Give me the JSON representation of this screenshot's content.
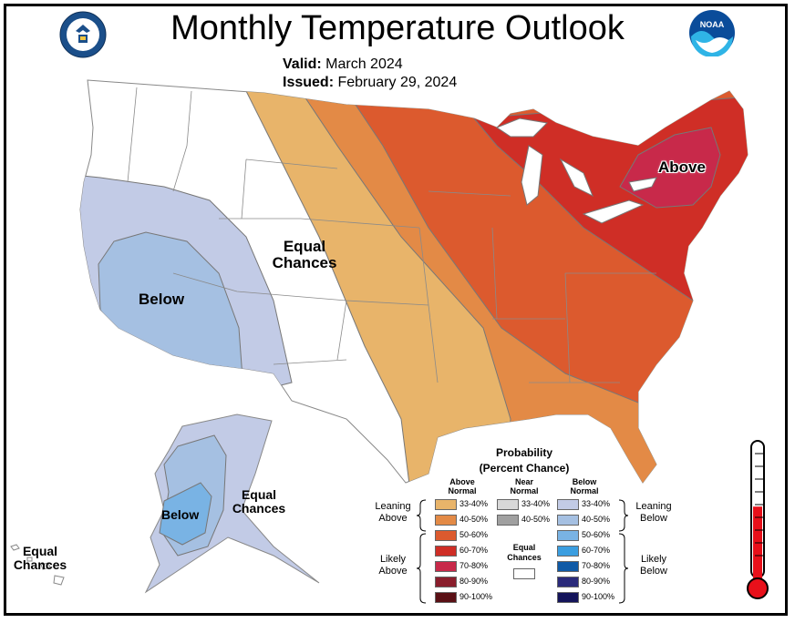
{
  "header": {
    "title": "Monthly Temperature Outlook",
    "valid_label": "Valid:",
    "valid_value": "March 2024",
    "issued_label": "Issued:",
    "issued_value": "February 29, 2024"
  },
  "logos": {
    "left": "commerce-seal",
    "left_text": "DEPARTMENT OF COMMERCE",
    "right": "noaa-logo",
    "right_text": "NOAA"
  },
  "map_labels": {
    "above": "Above",
    "below_west": "Below",
    "equal_chances_central": [
      "Equal",
      "Chances"
    ],
    "equal_chances_alaska": [
      "Equal",
      "Chances"
    ],
    "equal_chances_hawaii": [
      "Equal",
      "Chances"
    ],
    "below_alaska": "Below"
  },
  "legend": {
    "title": "Probability",
    "subtitle": "(Percent Chance)",
    "col_above": [
      "Above",
      "Normal"
    ],
    "col_near": [
      "Near",
      "Normal"
    ],
    "col_below": [
      "Below",
      "Normal"
    ],
    "above_bins": [
      {
        "label": "33-40%",
        "color": "#e8b46a"
      },
      {
        "label": "40-50%",
        "color": "#e38a46"
      },
      {
        "label": "50-60%",
        "color": "#dc5a2e"
      },
      {
        "label": "60-70%",
        "color": "#cf2e26"
      },
      {
        "label": "70-80%",
        "color": "#c8294a"
      },
      {
        "label": "80-90%",
        "color": "#8a1e2c"
      },
      {
        "label": "90-100%",
        "color": "#5a1015"
      }
    ],
    "near_bins": [
      {
        "label": "33-40%",
        "color": "#d8d8d8"
      },
      {
        "label": "40-50%",
        "color": "#a0a0a0"
      }
    ],
    "below_bins": [
      {
        "label": "33-40%",
        "color": "#c2cbe6"
      },
      {
        "label": "40-50%",
        "color": "#a5c0e2"
      },
      {
        "label": "50-60%",
        "color": "#79b3e4"
      },
      {
        "label": "60-70%",
        "color": "#3b9ee0"
      },
      {
        "label": "70-80%",
        "color": "#0f5aa6"
      },
      {
        "label": "80-90%",
        "color": "#2a2a7a"
      },
      {
        "label": "90-100%",
        "color": "#14145a"
      }
    ],
    "equal_chances": [
      "Equal",
      "Chances"
    ],
    "leaning_above": [
      "Leaning",
      "Above"
    ],
    "leaning_below": [
      "Leaning",
      "Below"
    ],
    "likely_above": [
      "Likely",
      "Above"
    ],
    "likely_below": [
      "Likely",
      "Below"
    ]
  },
  "thermometer": {
    "fill_level": 0.55,
    "color": "#e8101a"
  }
}
